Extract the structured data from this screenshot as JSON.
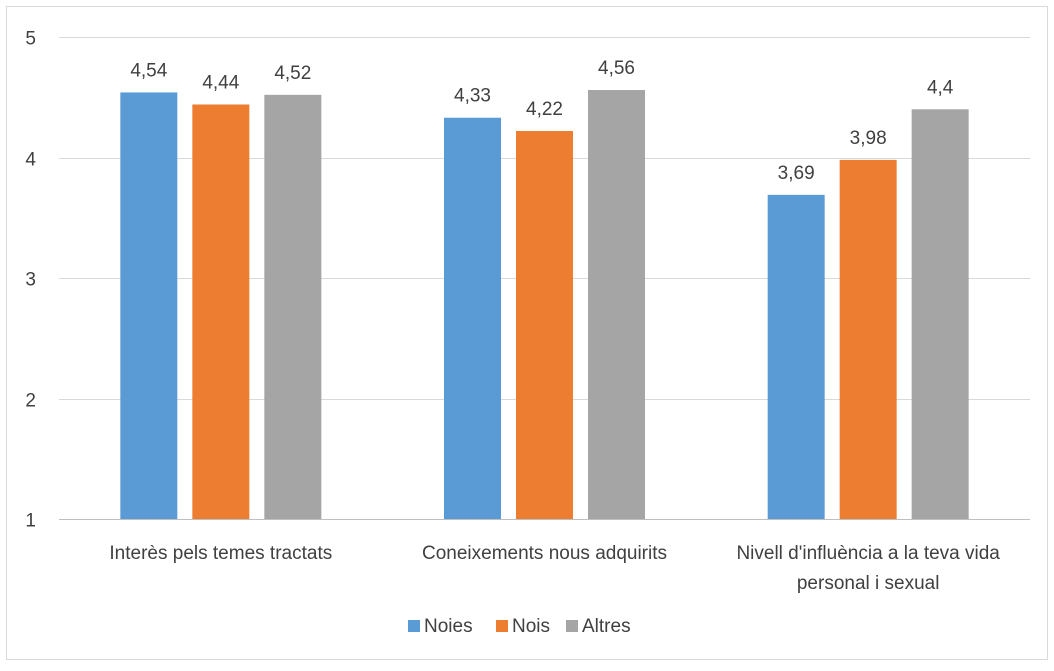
{
  "chart_data": {
    "type": "bar",
    "categories": [
      [
        "Interès pels temes tractats"
      ],
      [
        "Coneixements nous adquirits"
      ],
      [
        "Nivell d'influència a la teva vida",
        "personal i sexual"
      ]
    ],
    "series": [
      {
        "name": "Noies",
        "values": [
          4.54,
          4.33,
          3.69
        ],
        "labels": [
          "4,54",
          "4,33",
          "3,69"
        ],
        "color": "#5B9BD5"
      },
      {
        "name": "Nois",
        "values": [
          4.44,
          4.22,
          3.98
        ],
        "labels": [
          "4,44",
          "4,22",
          "3,98"
        ],
        "color": "#ED7D31"
      },
      {
        "name": "Altres",
        "values": [
          4.52,
          4.56,
          4.4
        ],
        "labels": [
          "4,52",
          "4,56",
          "4,4"
        ],
        "color": "#A5A5A5"
      }
    ],
    "ylim": [
      1,
      5
    ],
    "yticks": [
      1,
      2,
      3,
      4,
      5
    ],
    "ytick_labels": [
      "1",
      "2",
      "3",
      "4",
      "5"
    ],
    "grid": true,
    "legend": "bottom",
    "title": "",
    "xlabel": "",
    "ylabel": ""
  }
}
